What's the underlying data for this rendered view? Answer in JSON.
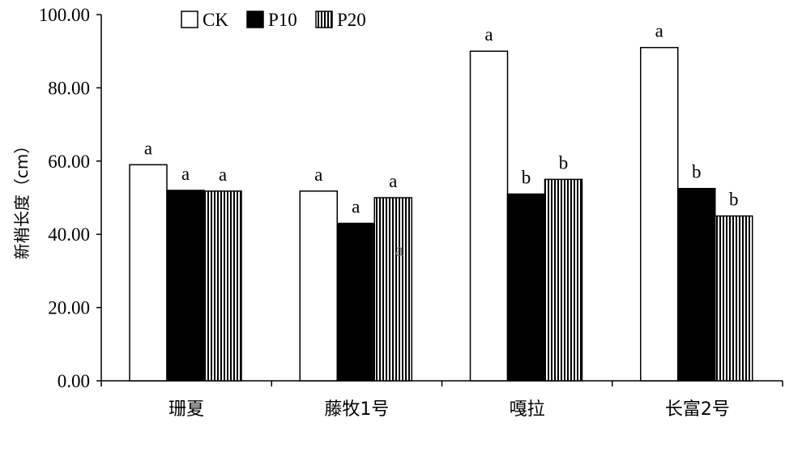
{
  "chart_data": {
    "type": "bar",
    "categories": [
      "珊夏",
      "藤牧1号",
      "嘎拉",
      "长富2号"
    ],
    "series": [
      {
        "name": "CK",
        "values": [
          59.0,
          51.8,
          90.0,
          91.0
        ],
        "labels": [
          "a",
          "a",
          "a",
          "a"
        ]
      },
      {
        "name": "P10",
        "values": [
          52.0,
          43.0,
          51.0,
          52.5
        ],
        "labels": [
          "a",
          "a",
          "b",
          "b"
        ]
      },
      {
        "name": "P20",
        "values": [
          51.8,
          50.0,
          55.0,
          45.0
        ],
        "labels": [
          "a",
          "a",
          "b",
          "b"
        ]
      }
    ],
    "ylabel": "新梢长度（cm）",
    "xlabel": "",
    "ylim": [
      0,
      100
    ],
    "yticks": [
      "0.00",
      "20.00",
      "40.00",
      "60.00",
      "80.00",
      "100.00"
    ],
    "legend_position": "top-left",
    "grid": false,
    "stray_annotation": "a"
  }
}
